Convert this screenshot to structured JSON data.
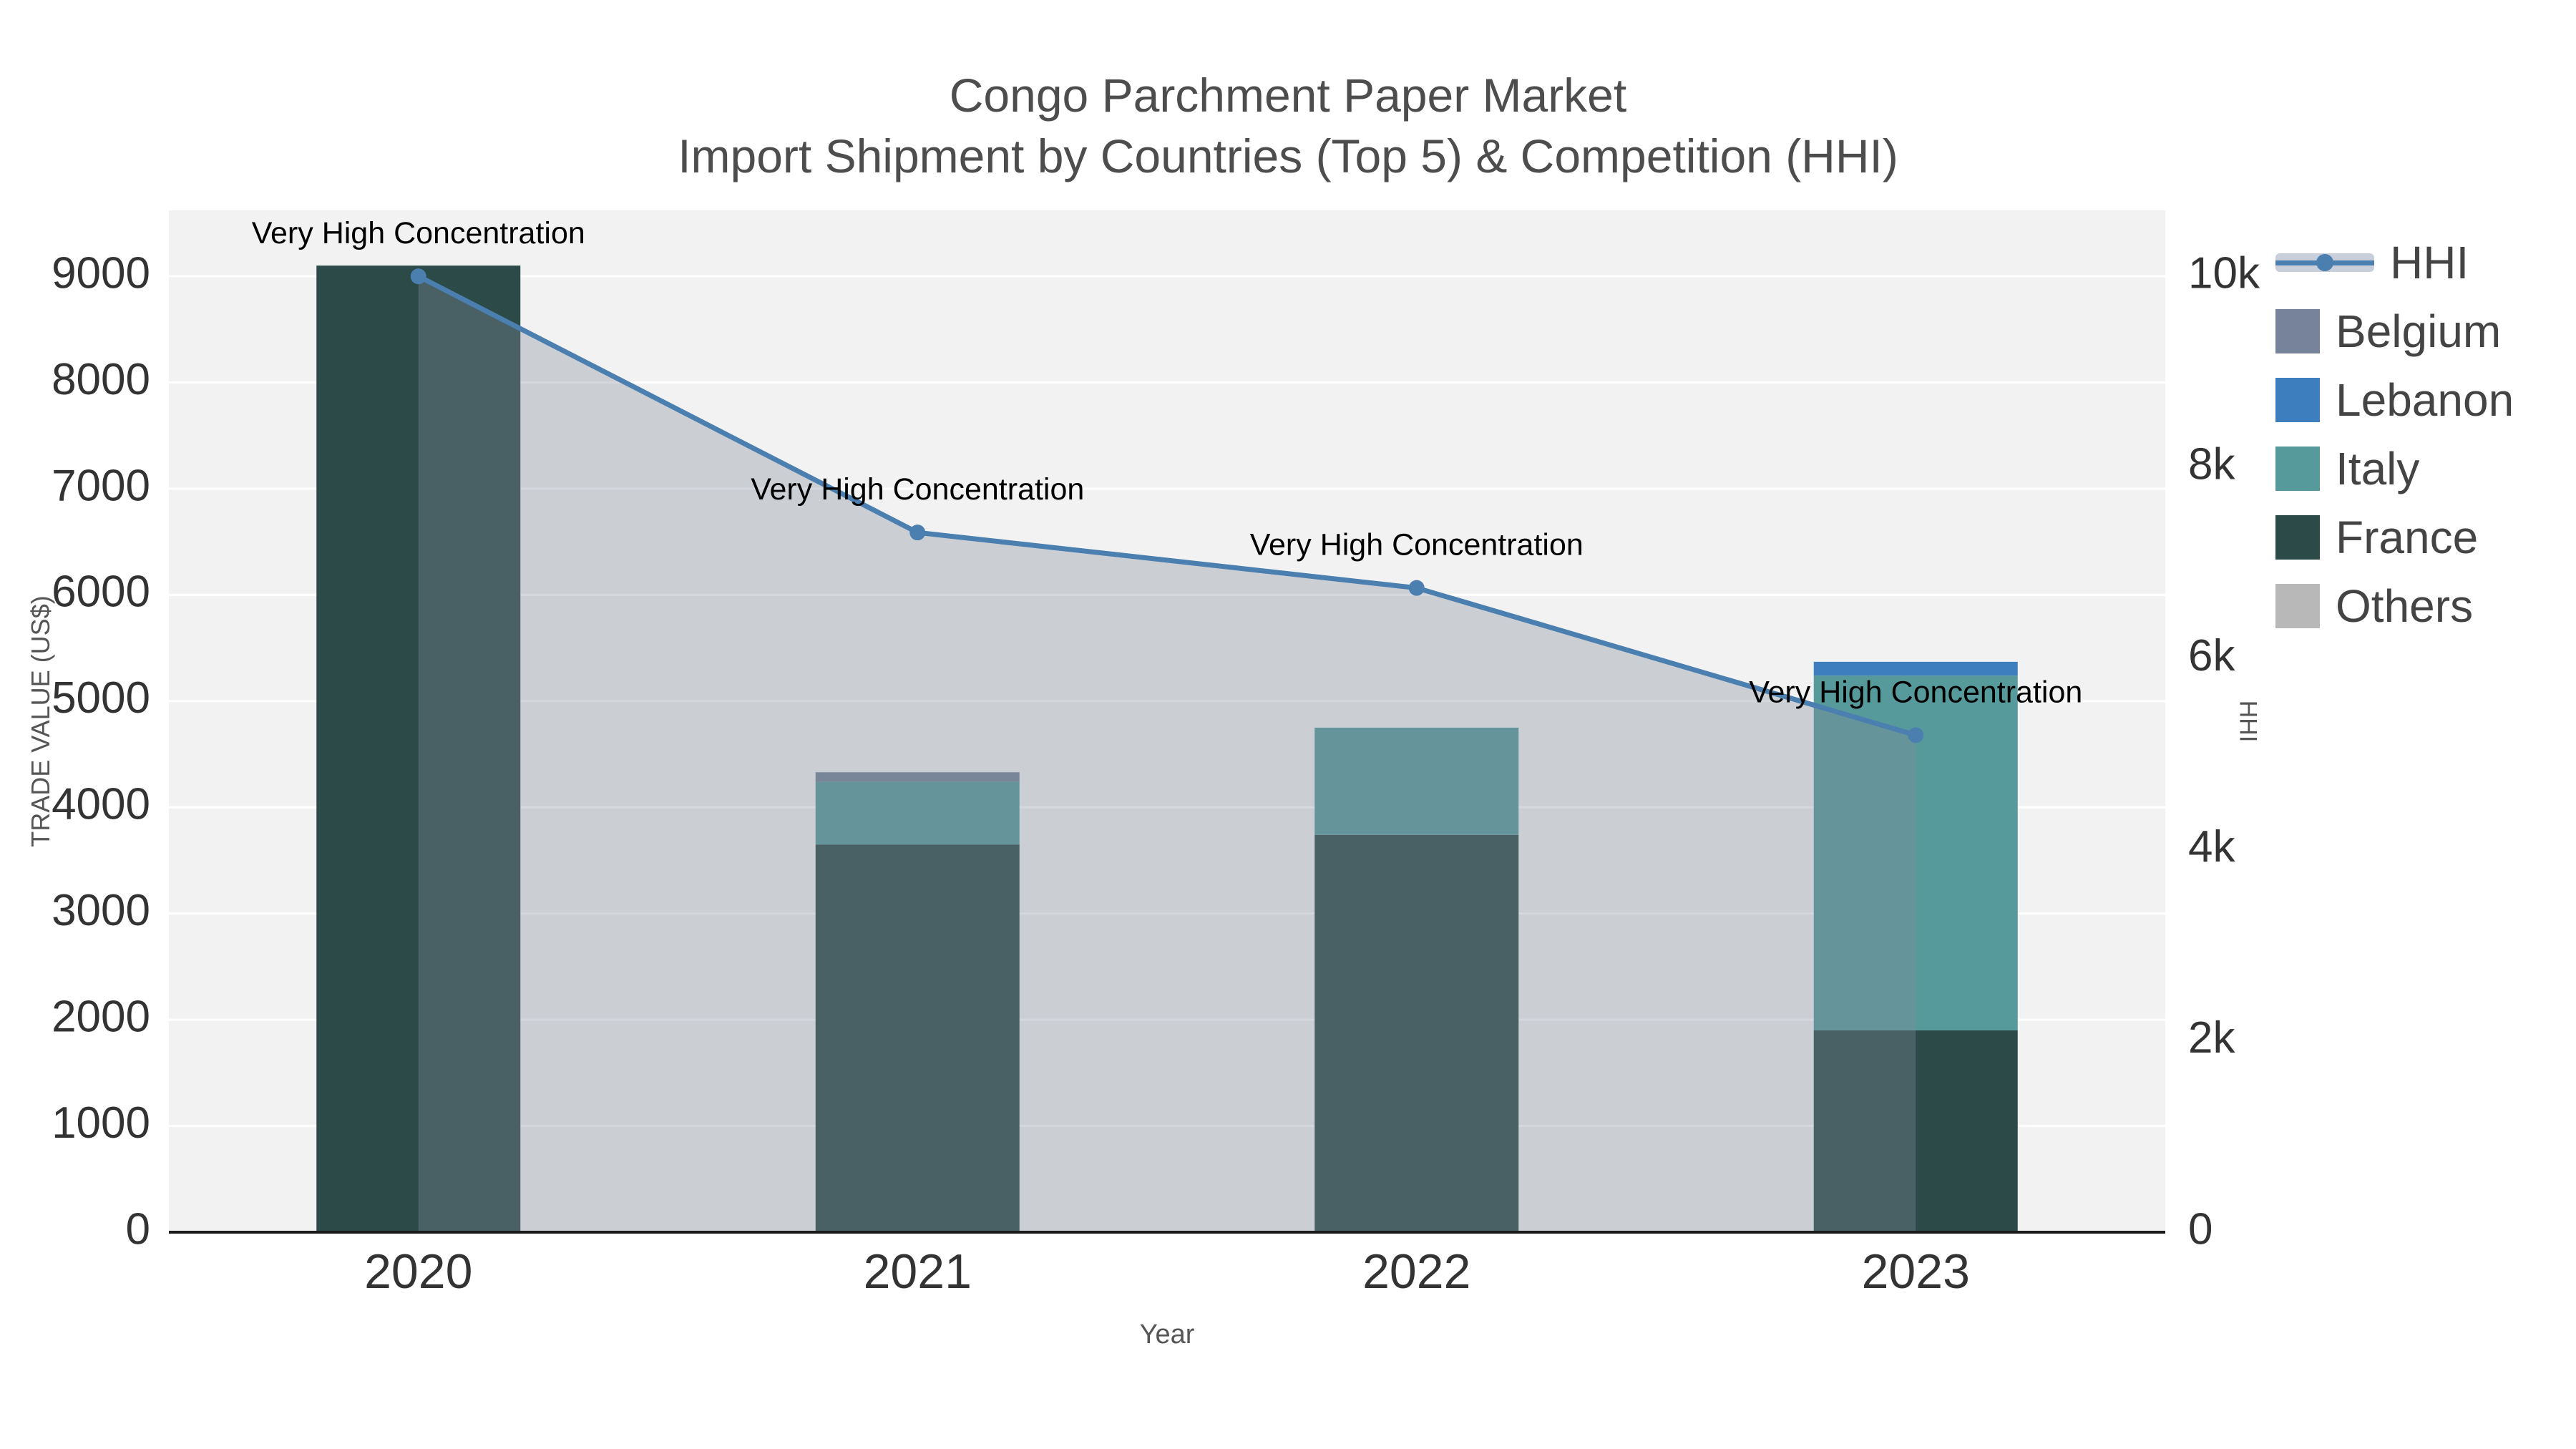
{
  "chart_data": {
    "type": "bar",
    "subtype": "stacked-bar-with-line-area",
    "title": "Congo Parchment Paper Market",
    "subtitle": "Import Shipment by Countries (Top 5) & Competition (HHI)",
    "xlabel": "Year",
    "ylabel_left": "TRADE VALUE (US$)",
    "ylabel_right": "HHI",
    "categories": [
      "2020",
      "2021",
      "2022",
      "2023"
    ],
    "bar_series": [
      {
        "name": "France",
        "color": "#2c4a48",
        "values": [
          9100,
          3650,
          3740,
          1900
        ]
      },
      {
        "name": "Italy",
        "color": "#579a9b",
        "values": [
          0,
          590,
          1010,
          3340
        ]
      },
      {
        "name": "Lebanon",
        "color": "#3d7ebf",
        "values": [
          0,
          0,
          0,
          130
        ]
      },
      {
        "name": "Belgium",
        "color": "#76839a",
        "values": [
          0,
          90,
          0,
          0
        ]
      },
      {
        "name": "Others",
        "color": "#b8b8b8",
        "values": [
          0,
          0,
          0,
          0
        ]
      }
    ],
    "line_series": {
      "name": "HHI",
      "color": "#4a7fb0",
      "area_color": "rgba(130,140,156,0.34)",
      "values": [
        10000,
        7320,
        6740,
        5200
      ]
    },
    "annotations": [
      {
        "category": "2020",
        "text": "Very High Concentration"
      },
      {
        "category": "2021",
        "text": "Very High Concentration"
      },
      {
        "category": "2022",
        "text": "Very High Concentration"
      },
      {
        "category": "2023",
        "text": "Very High Concentration"
      }
    ],
    "left_axis": {
      "min": 0,
      "max": 9620,
      "tick_values": [
        0,
        1000,
        2000,
        3000,
        4000,
        5000,
        6000,
        7000,
        8000,
        9000
      ],
      "tick_labels": [
        "0",
        "1000",
        "2000",
        "3000",
        "4000",
        "5000",
        "6000",
        "7000",
        "8000",
        "9000"
      ]
    },
    "right_axis": {
      "min": 0,
      "max": 10690,
      "tick_values": [
        0,
        2000,
        4000,
        6000,
        8000,
        10000
      ],
      "tick_labels": [
        "0",
        "2k",
        "4k",
        "6k",
        "8k",
        "10k"
      ]
    },
    "legend": [
      {
        "label": "HHI",
        "type": "line",
        "color": "#4a7fb0",
        "band_color": "#c9cfda"
      },
      {
        "label": "Belgium",
        "type": "square",
        "color": "#76839a"
      },
      {
        "label": "Lebanon",
        "type": "square",
        "color": "#3d7ebf"
      },
      {
        "label": "Italy",
        "type": "square",
        "color": "#579a9b"
      },
      {
        "label": "France",
        "type": "square",
        "color": "#2c4a48"
      },
      {
        "label": "Others",
        "type": "square",
        "color": "#b8b8b8"
      }
    ],
    "colors": {
      "plot_bg": "#f2f2f2",
      "grid": "#ffffff",
      "axis_line": "#1a1a1a",
      "tick_text": "#333333",
      "annotation_text": "#000000"
    }
  }
}
